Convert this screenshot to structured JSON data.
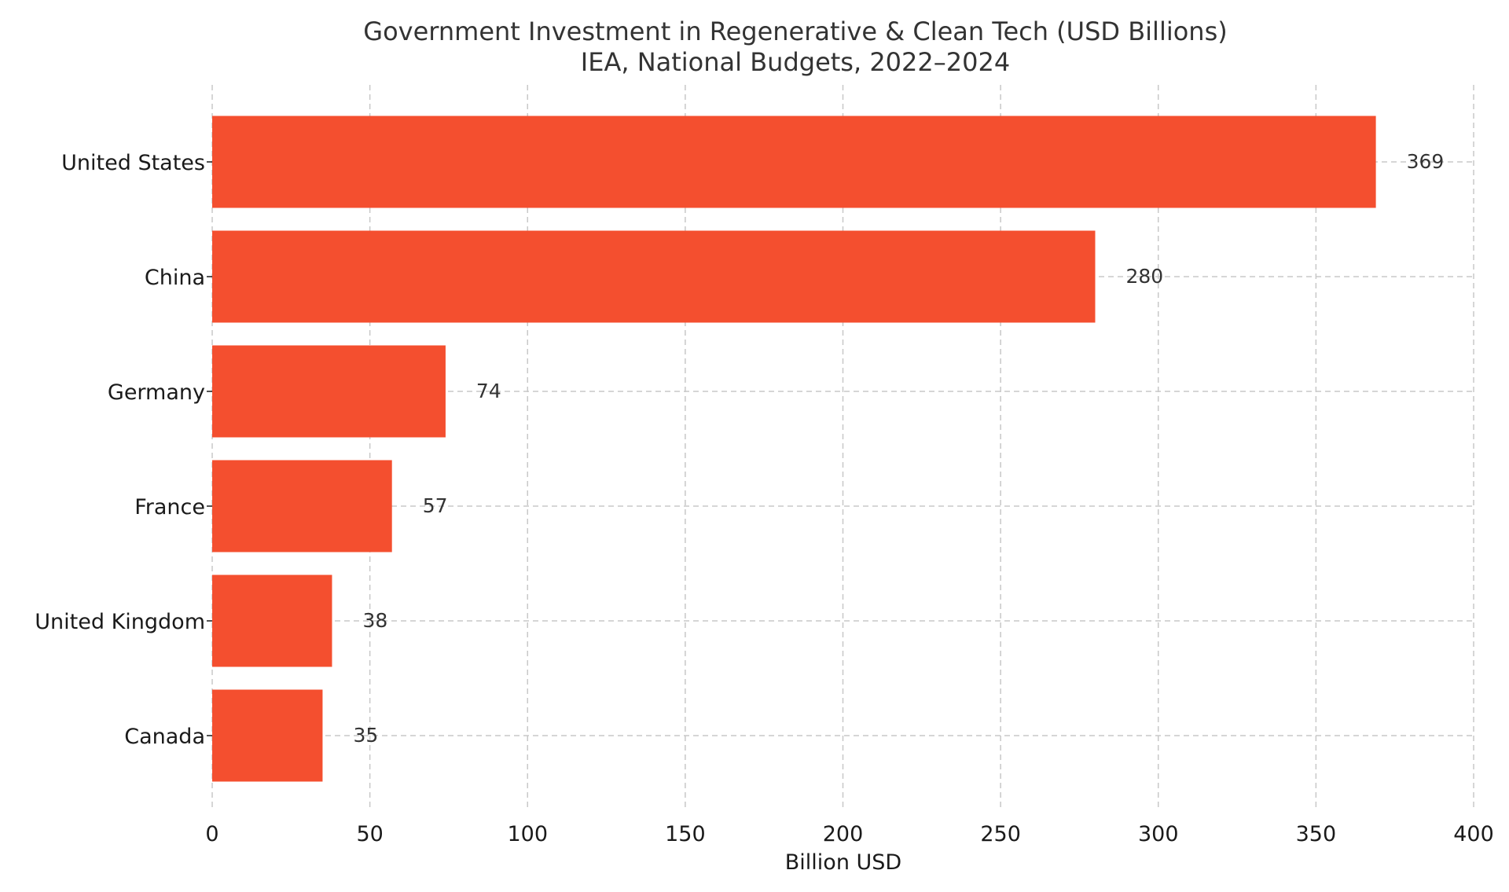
{
  "chart_data": {
    "type": "bar",
    "orientation": "horizontal",
    "title": "Government Investment in Regenerative & Clean Tech (USD Billions)",
    "subtitle": "IEA, National Budgets, 2022–2024",
    "xlabel": "Billion USD",
    "ylabel": "",
    "categories": [
      "United States",
      "China",
      "Germany",
      "France",
      "United Kingdom",
      "Canada"
    ],
    "values": [
      369,
      280,
      74,
      57,
      38,
      35
    ],
    "value_labels": [
      "369",
      "280",
      "74",
      "57",
      "38",
      "35"
    ],
    "xlim": [
      0,
      400
    ],
    "xticks": [
      0,
      50,
      100,
      150,
      200,
      250,
      300,
      350,
      400
    ],
    "xtick_labels": [
      "0",
      "50",
      "100",
      "150",
      "200",
      "250",
      "300",
      "350",
      "400"
    ],
    "grid": true,
    "grid_style": "dashed",
    "bar_color": "#f44f2f",
    "legend": false
  }
}
